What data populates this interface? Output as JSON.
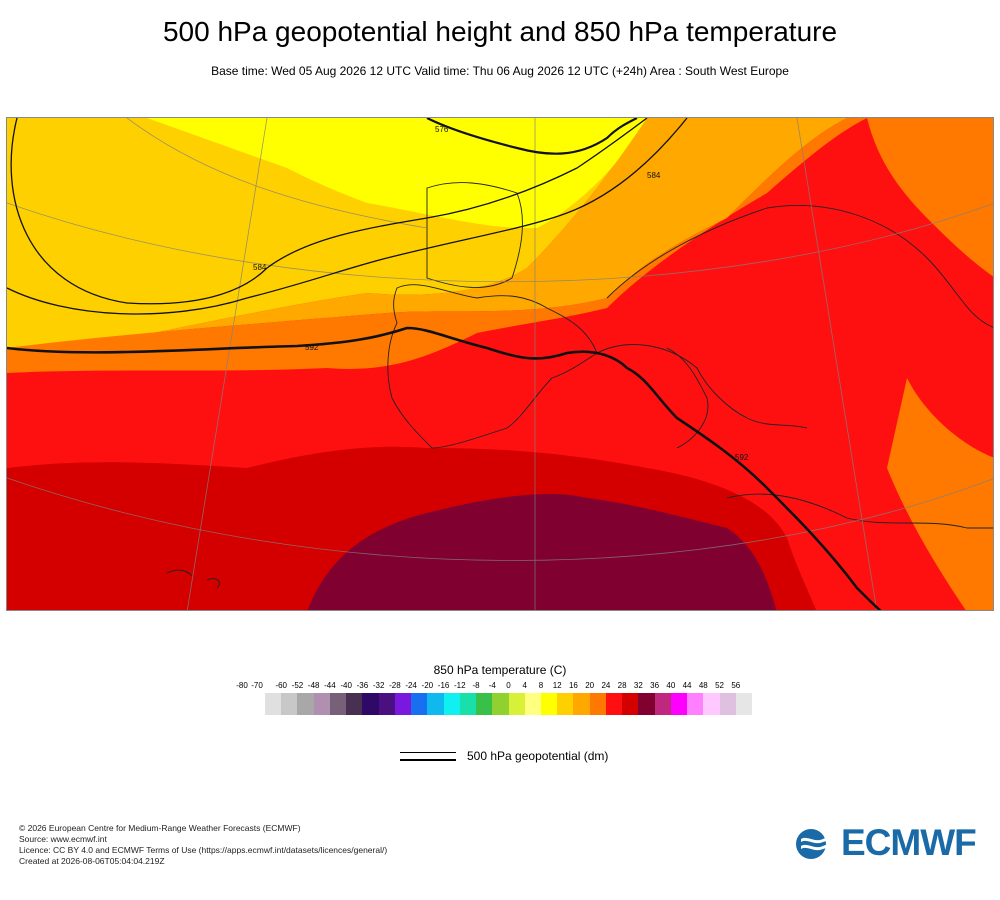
{
  "header": {
    "title": "500 hPa geopotential height and 850 hPa temperature",
    "subtitle": "Base time: Wed 05 Aug 2026 12 UTC Valid time: Thu 06 Aug 2026 12 UTC (+24h) Area : South West Europe"
  },
  "map": {
    "contour_labels": [
      "576",
      "584",
      "584",
      "592",
      "592"
    ],
    "region": "South West Europe"
  },
  "legend": {
    "title": "850 hPa temperature (C)",
    "ticks": [
      "-80",
      "-70",
      "-60",
      "-52",
      "-48",
      "-44",
      "-40",
      "-36",
      "-32",
      "-28",
      "-24",
      "-20",
      "-16",
      "-12",
      "-8",
      "-4",
      "0",
      "4",
      "8",
      "12",
      "16",
      "20",
      "24",
      "28",
      "32",
      "36",
      "40",
      "44",
      "48",
      "52",
      "56"
    ],
    "colors": [
      "#e0e0e0",
      "#c8c8c8",
      "#a8a8a8",
      "#b08fb0",
      "#786078",
      "#483050",
      "#300868",
      "#4a1080",
      "#7a18e0",
      "#1870f0",
      "#10b8f0",
      "#10f0f0",
      "#18e0a8",
      "#38c048",
      "#90d030",
      "#d8f038",
      "#ffff80",
      "#ffff00",
      "#ffd000",
      "#ffa800",
      "#ff7800",
      "#ff1010",
      "#d40000",
      "#800030",
      "#c02880",
      "#ff00ff",
      "#ff80ff",
      "#ffc8ff",
      "#e0c0e0",
      "#e6e6e6"
    ],
    "geo_label": "500 hPa geopotential (dm)"
  },
  "footer": {
    "lines": [
      "© 2026 European Centre for Medium-Range Weather Forecasts (ECMWF)",
      "Source: www.ecmwf.int",
      "Licence: CC BY 4.0 and ECMWF Terms of Use (https://apps.ecmwf.int/datasets/licences/general/)",
      "Created at 2026-08-06T05:04:04.219Z"
    ]
  },
  "logo": {
    "text": "ECMWF",
    "color": "#1a6aa8"
  }
}
